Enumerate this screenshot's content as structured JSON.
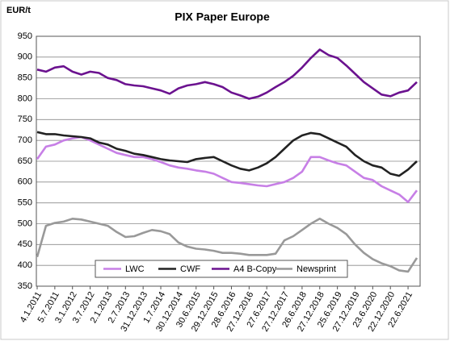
{
  "chart_data": {
    "type": "line",
    "title": "PIX Paper Europe",
    "y_label": "EUR/t",
    "categories": [
      "4.1.2011",
      null,
      "5.7.2011",
      null,
      "3.1.2012",
      null,
      "3.7.2012",
      null,
      "2.1.2013",
      null,
      "2.7.2013",
      null,
      "31.12.2013",
      null,
      "1.7.2014",
      null,
      "30.12.2014",
      null,
      "30.6.2015",
      null,
      "29.12.2015",
      null,
      "28.6.2016",
      null,
      "27.12.2016",
      null,
      "27.6.2017",
      null,
      "27.12.2017",
      null,
      "26.6.2018",
      null,
      "27.12.2018",
      null,
      "25.6.2019",
      null,
      "27.12.2019",
      null,
      "23.6.2020",
      null,
      "22.12.2020",
      null,
      "22.6.2021",
      null
    ],
    "series": [
      {
        "name": "LWC",
        "color": "#c77fe6",
        "values": [
          655,
          685,
          690,
          700,
          705,
          708,
          700,
          690,
          680,
          670,
          665,
          660,
          660,
          655,
          648,
          640,
          635,
          632,
          628,
          625,
          620,
          610,
          600,
          598,
          595,
          592,
          590,
          595,
          600,
          610,
          625,
          660,
          660,
          652,
          645,
          640,
          625,
          610,
          605,
          590,
          580,
          570,
          552,
          580
        ]
      },
      {
        "name": "CWF",
        "color": "#222222",
        "values": [
          720,
          715,
          715,
          712,
          710,
          708,
          705,
          695,
          690,
          680,
          675,
          668,
          665,
          660,
          655,
          652,
          650,
          648,
          655,
          658,
          660,
          650,
          640,
          632,
          628,
          635,
          645,
          660,
          680,
          700,
          712,
          718,
          715,
          705,
          695,
          685,
          665,
          650,
          640,
          635,
          620,
          615,
          630,
          650
        ]
      },
      {
        "name": "A4 B-Copy",
        "color": "#6b128f",
        "values": [
          870,
          865,
          875,
          878,
          865,
          858,
          865,
          862,
          850,
          845,
          835,
          832,
          830,
          825,
          820,
          812,
          825,
          832,
          835,
          840,
          835,
          828,
          815,
          808,
          800,
          805,
          815,
          828,
          840,
          855,
          875,
          898,
          918,
          905,
          898,
          880,
          860,
          840,
          825,
          810,
          806,
          815,
          820,
          840
        ]
      },
      {
        "name": "Newsprint",
        "color": "#999999",
        "values": [
          420,
          495,
          502,
          505,
          512,
          510,
          505,
          500,
          495,
          480,
          468,
          470,
          478,
          485,
          482,
          475,
          455,
          445,
          440,
          438,
          435,
          430,
          430,
          428,
          425,
          425,
          425,
          428,
          460,
          470,
          485,
          500,
          512,
          500,
          490,
          475,
          450,
          430,
          415,
          405,
          398,
          388,
          385,
          418
        ]
      }
    ],
    "ylim": [
      350,
      950
    ],
    "yticks": [
      350,
      400,
      450,
      500,
      550,
      600,
      650,
      700,
      750,
      800,
      850,
      900,
      950
    ],
    "grid": true
  }
}
